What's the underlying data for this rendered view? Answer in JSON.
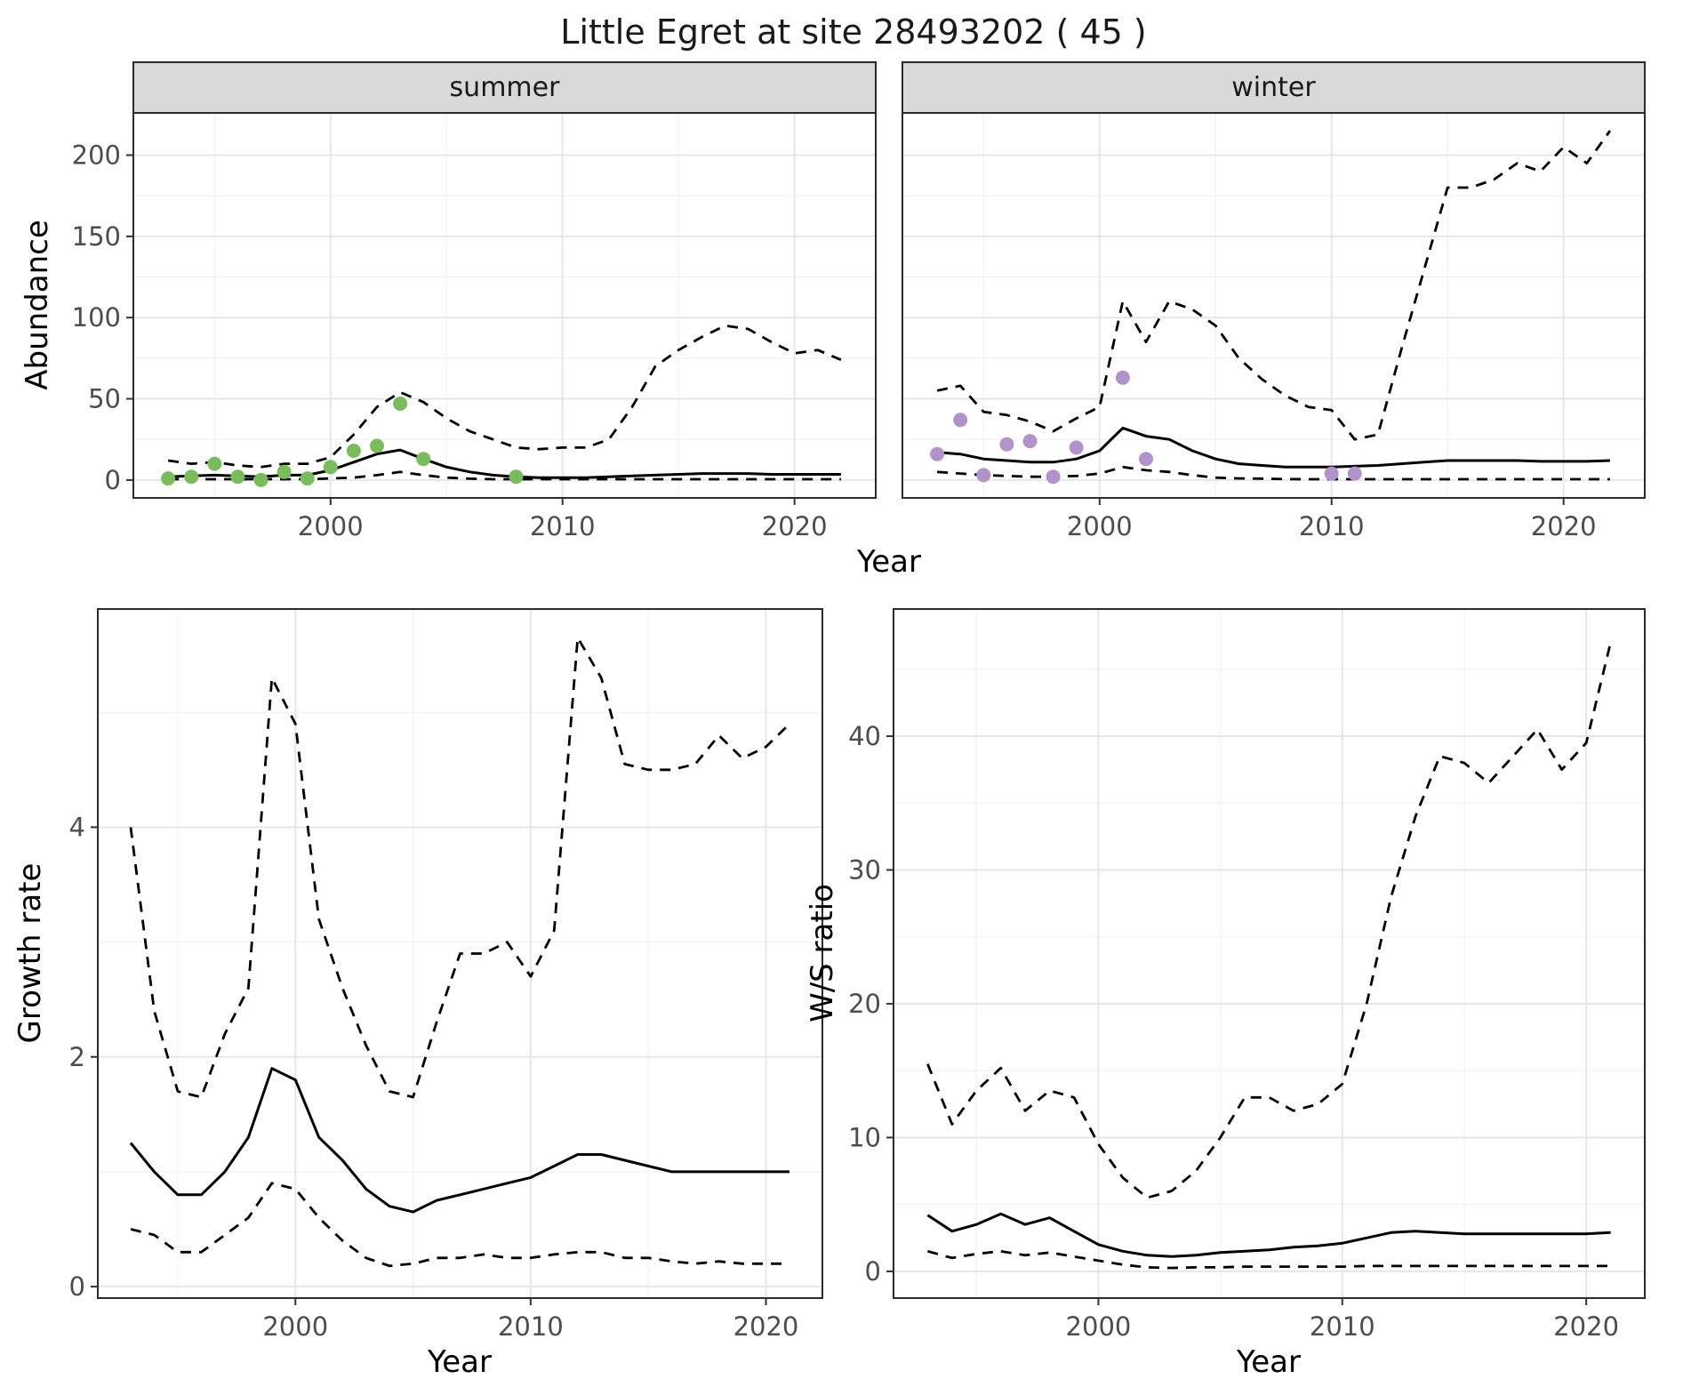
{
  "title": "Little Egret at site 28493202 ( 45 )",
  "colors": {
    "line": "#000000",
    "summer_points": "#78bd59",
    "winter_points": "#b292cb",
    "strip_background": "#d9d9d9",
    "panel_background": "#ffffff",
    "grid_major": "#e5e5e5",
    "grid_minor": "#f2f2f2",
    "panel_border": "#2b2b2b",
    "tick_label": "#4d4d4d"
  },
  "chart_data": [
    {
      "id": "abundance-summer",
      "type": "line",
      "facet_label": "summer",
      "xlabel": "Year",
      "ylabel": "Abundance",
      "xlim": [
        1991.5,
        2023.5
      ],
      "ylim": [
        -11,
        226
      ],
      "xticks": [
        2000,
        2010,
        2020
      ],
      "xticks_minor": [
        1995,
        2005,
        2015
      ],
      "yticks": [
        0,
        50,
        100,
        150,
        200
      ],
      "yticks_minor": [
        25,
        75,
        125,
        175,
        225
      ],
      "x": [
        1993,
        1994,
        1995,
        1996,
        1997,
        1998,
        1999,
        2000,
        2001,
        2002,
        2003,
        2004,
        2005,
        2006,
        2007,
        2008,
        2009,
        2010,
        2011,
        2012,
        2013,
        2014,
        2015,
        2016,
        2017,
        2018,
        2019,
        2020,
        2021,
        2022
      ],
      "series": [
        {
          "name": "upper-ci",
          "style": "dashed",
          "values": [
            12,
            10,
            11,
            9,
            8,
            10,
            10,
            14,
            28,
            45,
            54,
            48,
            38,
            30,
            25,
            20,
            19,
            20,
            20,
            25,
            45,
            70,
            80,
            88,
            95,
            93,
            85,
            78,
            80,
            74
          ]
        },
        {
          "name": "fit",
          "style": "solid",
          "values": [
            2,
            2.5,
            3,
            2.5,
            2,
            3,
            3,
            6,
            11,
            16,
            18.5,
            13,
            8,
            5,
            3,
            2,
            1.5,
            1.5,
            1.5,
            2,
            2.5,
            3,
            3.5,
            4,
            4,
            4,
            3.5,
            3.5,
            3.5,
            3.5
          ]
        },
        {
          "name": "lower-ci",
          "style": "dashed",
          "values": [
            0.5,
            0.5,
            0.5,
            0.5,
            0.5,
            0.5,
            0.5,
            1,
            1.5,
            3,
            5,
            3,
            1.5,
            0.8,
            0.5,
            0.5,
            0.5,
            0.5,
            0.5,
            0.5,
            0.5,
            0.5,
            0.5,
            0.5,
            0.5,
            0.5,
            0.5,
            0.5,
            0.5,
            0.5
          ]
        }
      ],
      "points": {
        "name": "observed-summer",
        "color": "#78bd59",
        "x": [
          1993,
          1994,
          1995,
          1996,
          1997,
          1998,
          1999,
          2000,
          2001,
          2002,
          2003,
          2004,
          2008
        ],
        "y": [
          1,
          2,
          10,
          2,
          0,
          5,
          1,
          8,
          18,
          21,
          47,
          13,
          2
        ]
      }
    },
    {
      "id": "abundance-winter",
      "type": "line",
      "facet_label": "winter",
      "xlabel": "Year",
      "ylabel": "Abundance",
      "xlim": [
        1991.5,
        2023.5
      ],
      "ylim": [
        -11,
        226
      ],
      "xticks": [
        2000,
        2010,
        2020
      ],
      "xticks_minor": [
        1995,
        2005,
        2015
      ],
      "yticks": [
        0,
        50,
        100,
        150,
        200
      ],
      "yticks_minor": [
        25,
        75,
        125,
        175,
        225
      ],
      "x": [
        1993,
        1994,
        1995,
        1996,
        1997,
        1998,
        1999,
        2000,
        2001,
        2002,
        2003,
        2004,
        2005,
        2006,
        2007,
        2008,
        2009,
        2010,
        2011,
        2012,
        2013,
        2014,
        2015,
        2016,
        2017,
        2018,
        2019,
        2020,
        2021,
        2022
      ],
      "series": [
        {
          "name": "upper-ci",
          "style": "dashed",
          "values": [
            55,
            58,
            42,
            40,
            36,
            30,
            38,
            45,
            110,
            85,
            110,
            105,
            95,
            75,
            62,
            52,
            45,
            43,
            25,
            28,
            80,
            130,
            180,
            180,
            185,
            195,
            190,
            205,
            195,
            215
          ]
        },
        {
          "name": "fit",
          "style": "solid",
          "values": [
            17,
            16,
            13,
            12,
            11,
            11,
            13,
            18,
            32,
            27,
            25,
            18,
            13,
            10,
            9,
            8,
            8,
            8,
            8.5,
            9,
            10,
            11,
            12,
            12,
            12,
            12,
            11.5,
            11.5,
            11.5,
            12
          ]
        },
        {
          "name": "lower-ci",
          "style": "dashed",
          "values": [
            5,
            4,
            3,
            2.5,
            2,
            2,
            2.5,
            4,
            8,
            6,
            5,
            3,
            1.5,
            1,
            0.8,
            0.6,
            0.5,
            0.5,
            0.5,
            0.5,
            0.5,
            0.5,
            0.5,
            0.5,
            0.5,
            0.5,
            0.5,
            0.5,
            0.5,
            0.5
          ]
        }
      ],
      "points": {
        "name": "observed-winter",
        "color": "#b292cb",
        "x": [
          1993,
          1994,
          1995,
          1996,
          1997,
          1998,
          1999,
          2001,
          2002,
          2010,
          2011
        ],
        "y": [
          16,
          37,
          3,
          22,
          24,
          2,
          20,
          63,
          13,
          4,
          4
        ]
      }
    },
    {
      "id": "growth-rate",
      "type": "line",
      "xlabel": "Year",
      "ylabel": "Growth rate",
      "xlim": [
        1991.6,
        2022.4
      ],
      "ylim": [
        -0.1,
        5.9
      ],
      "xticks": [
        2000,
        2010,
        2020
      ],
      "xticks_minor": [
        1995,
        2005,
        2015
      ],
      "yticks": [
        0,
        2,
        4
      ],
      "yticks_minor": [
        1,
        3,
        5
      ],
      "x": [
        1993,
        1994,
        1995,
        1996,
        1997,
        1998,
        1999,
        2000,
        2001,
        2002,
        2003,
        2004,
        2005,
        2006,
        2007,
        2008,
        2009,
        2010,
        2011,
        2012,
        2013,
        2014,
        2015,
        2016,
        2017,
        2018,
        2019,
        2020,
        2021
      ],
      "series": [
        {
          "name": "upper-ci",
          "style": "dashed",
          "values": [
            4.0,
            2.4,
            1.7,
            1.65,
            2.2,
            2.6,
            5.3,
            4.9,
            3.2,
            2.6,
            2.1,
            1.7,
            1.65,
            2.3,
            2.9,
            2.9,
            3.0,
            2.7,
            3.1,
            5.65,
            5.3,
            4.55,
            4.5,
            4.5,
            4.55,
            4.8,
            4.6,
            4.7,
            4.9
          ]
        },
        {
          "name": "fit",
          "style": "solid",
          "values": [
            1.25,
            1.0,
            0.8,
            0.8,
            1.0,
            1.3,
            1.9,
            1.8,
            1.3,
            1.1,
            0.85,
            0.7,
            0.65,
            0.75,
            0.8,
            0.85,
            0.9,
            0.95,
            1.05,
            1.15,
            1.15,
            1.1,
            1.05,
            1.0,
            1.0,
            1.0,
            1.0,
            1.0,
            1.0
          ]
        },
        {
          "name": "lower-ci",
          "style": "dashed",
          "values": [
            0.5,
            0.45,
            0.3,
            0.3,
            0.45,
            0.6,
            0.9,
            0.85,
            0.6,
            0.4,
            0.25,
            0.18,
            0.2,
            0.25,
            0.25,
            0.28,
            0.25,
            0.25,
            0.28,
            0.3,
            0.3,
            0.25,
            0.25,
            0.22,
            0.2,
            0.22,
            0.2,
            0.2,
            0.2
          ]
        }
      ]
    },
    {
      "id": "ws-ratio",
      "type": "line",
      "xlabel": "Year",
      "ylabel": "W/S ratio",
      "xlim": [
        1991.6,
        2022.4
      ],
      "ylim": [
        -2,
        49.5
      ],
      "xticks": [
        2000,
        2010,
        2020
      ],
      "xticks_minor": [
        1995,
        2005,
        2015
      ],
      "yticks": [
        0,
        10,
        20,
        30,
        40
      ],
      "yticks_minor": [
        5,
        15,
        25,
        35,
        45
      ],
      "x": [
        1993,
        1994,
        1995,
        1996,
        1997,
        1998,
        1999,
        2000,
        2001,
        2002,
        2003,
        2004,
        2005,
        2006,
        2007,
        2008,
        2009,
        2010,
        2011,
        2012,
        2013,
        2014,
        2015,
        2016,
        2017,
        2018,
        2019,
        2020,
        2021
      ],
      "series": [
        {
          "name": "upper-ci",
          "style": "dashed",
          "values": [
            15.5,
            11,
            13.5,
            15.2,
            12,
            13.5,
            13,
            9.5,
            7,
            5.5,
            6,
            7.5,
            10,
            13,
            13,
            12,
            12.5,
            14,
            20,
            28,
            34,
            38.5,
            38,
            36.5,
            38.5,
            40.5,
            37.5,
            39.5,
            47
          ]
        },
        {
          "name": "fit",
          "style": "solid",
          "values": [
            4.2,
            3.0,
            3.5,
            4.3,
            3.5,
            4.0,
            3.0,
            2.0,
            1.5,
            1.2,
            1.1,
            1.2,
            1.4,
            1.5,
            1.6,
            1.8,
            1.9,
            2.1,
            2.5,
            2.9,
            3.0,
            2.9,
            2.8,
            2.8,
            2.8,
            2.8,
            2.8,
            2.8,
            2.9
          ]
        },
        {
          "name": "lower-ci",
          "style": "dashed",
          "values": [
            1.5,
            1.0,
            1.3,
            1.5,
            1.2,
            1.4,
            1.1,
            0.8,
            0.5,
            0.3,
            0.25,
            0.3,
            0.3,
            0.35,
            0.35,
            0.35,
            0.35,
            0.35,
            0.4,
            0.4,
            0.4,
            0.4,
            0.4,
            0.4,
            0.4,
            0.4,
            0.4,
            0.4,
            0.4
          ]
        }
      ]
    }
  ]
}
